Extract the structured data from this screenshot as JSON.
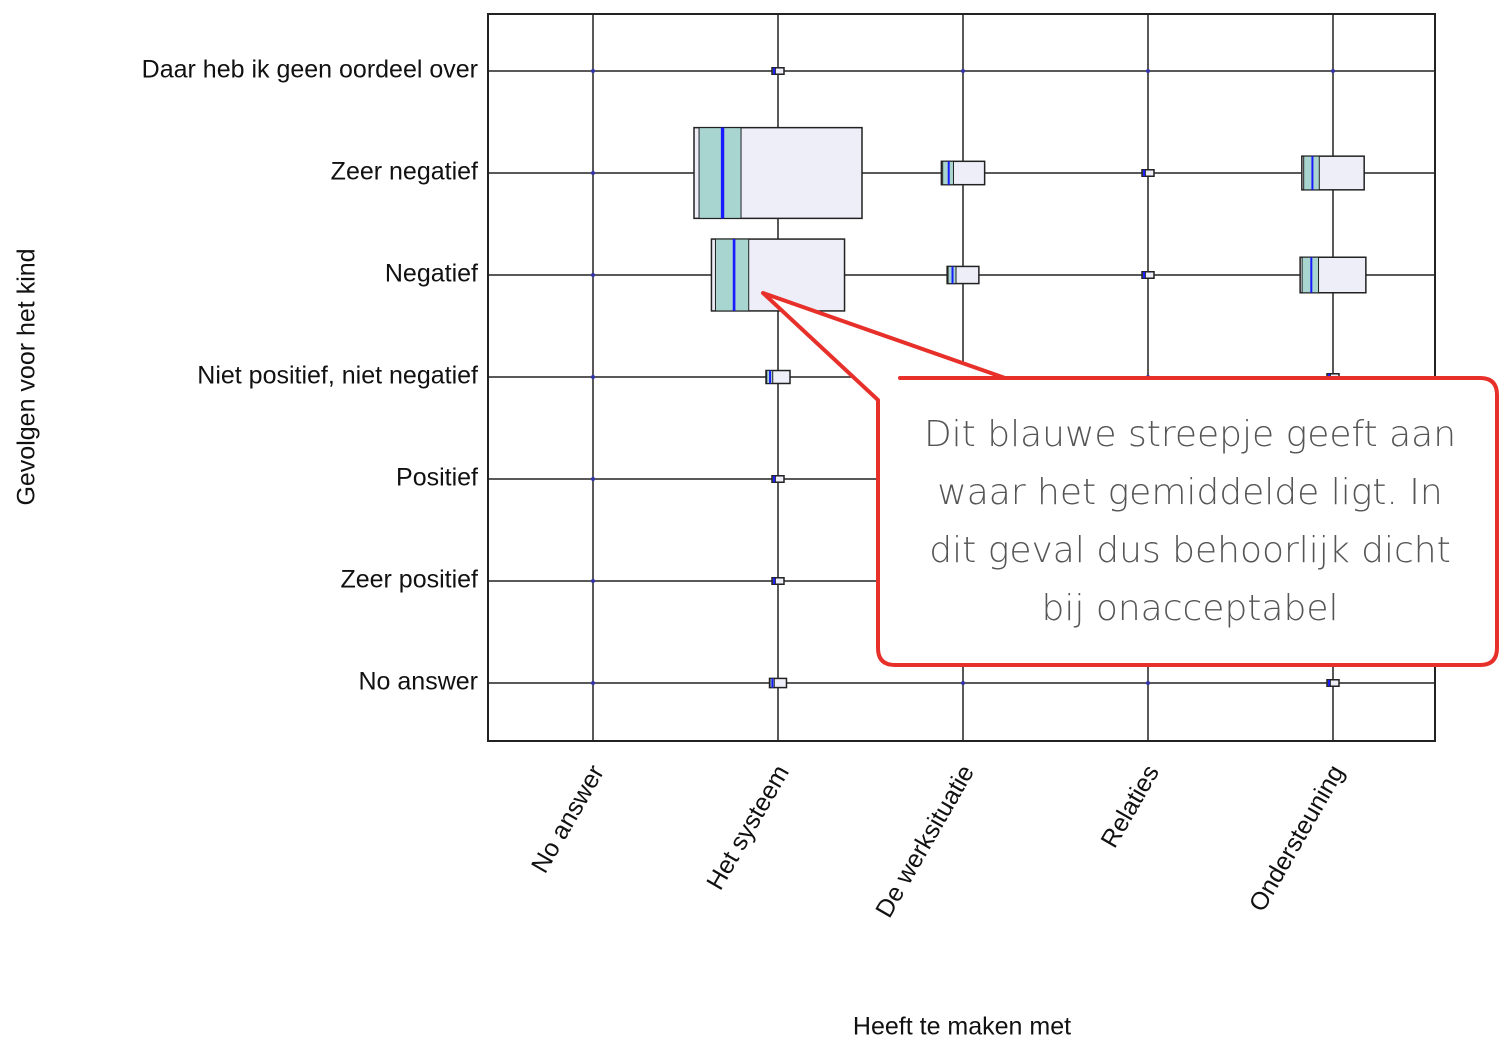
{
  "chart_data": {
    "type": "box-grid",
    "x_label": "Heeft te maken met",
    "y_label": "Gevolgen voor het kind",
    "categories": [
      "No answer",
      "Het systeem",
      "De werksituatie",
      "Relaties",
      "Ondersteuning"
    ],
    "rows": [
      "Daar heb ik geen oordeel over",
      "Zeer negatief",
      "Negatief",
      "Niet positief, niet negatief",
      "Positief",
      "Zeer positief",
      "No answer"
    ],
    "values": [
      [
        0,
        1,
        0,
        0,
        0
      ],
      [
        0,
        196,
        13,
        1,
        27
      ],
      [
        0,
        123,
        7,
        1,
        30
      ],
      [
        0,
        4,
        0,
        0,
        1
      ],
      [
        0,
        1,
        0,
        0,
        0
      ],
      [
        0,
        1,
        0,
        0,
        0
      ],
      [
        0,
        2,
        0,
        0,
        1
      ]
    ]
  },
  "callout": {
    "lines": [
      "Dit blauwe streepje geeft aan",
      "waar het gemiddelde ligt. In",
      "dit geval dus behoorlijk dicht",
      "bij onacceptabel"
    ]
  }
}
